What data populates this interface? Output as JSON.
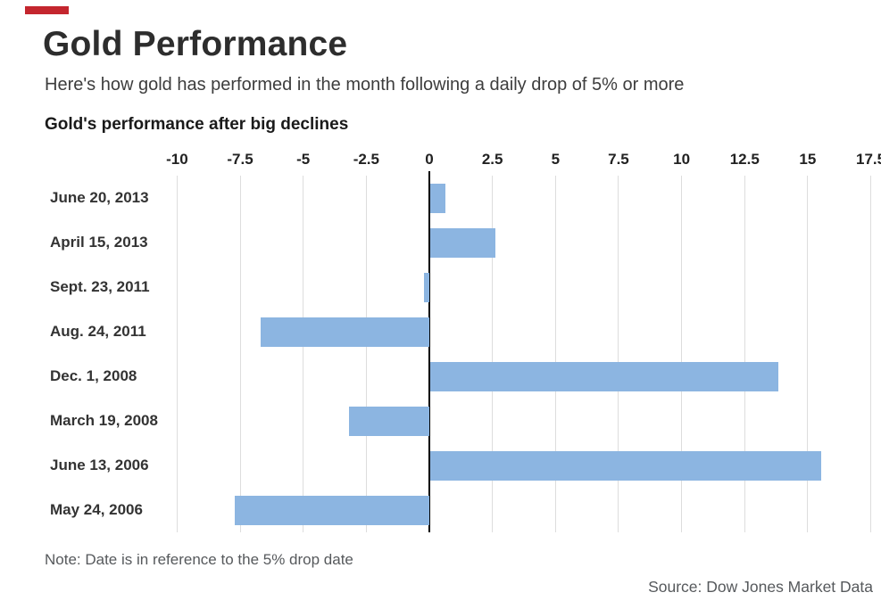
{
  "accent_color": "#c4262e",
  "header": {
    "title": "Gold Performance",
    "subtitle": "Here's how gold has performed in the month following a daily drop of 5% or more"
  },
  "chart": {
    "note": "Note: Date is in reference to the 5% drop date",
    "source": "Source: Dow Jones Market Data",
    "bar_color": "#8cb5e1",
    "gridline_color": "#dddddd",
    "zero_line_color": "#000000"
  },
  "chart_data": {
    "type": "bar",
    "orientation": "horizontal",
    "title": "Gold's performance after big declines",
    "categories": [
      "June 20, 2013",
      "April 15, 2013",
      "Sept. 23, 2011",
      "Aug. 24, 2011",
      "Dec. 1, 2008",
      "March 19, 2008",
      "June 13, 2006",
      "May 24, 2006"
    ],
    "values": [
      0.6,
      2.6,
      -0.2,
      -6.7,
      13.8,
      -3.2,
      15.5,
      -7.7
    ],
    "x_ticks": [
      -10,
      -7.5,
      -5,
      -2.5,
      0,
      2.5,
      5,
      7.5,
      10,
      12.5,
      15,
      17.5
    ],
    "x_tick_labels": [
      "-10",
      "-7.5",
      "-5",
      "-2.5",
      "0",
      "2.5",
      "5",
      "7.5",
      "10",
      "12.5",
      "15",
      "17.5"
    ],
    "xlim": [
      -10.5,
      17.9
    ],
    "ylabel": "",
    "xlabel": "",
    "grid": true,
    "legend": false
  }
}
